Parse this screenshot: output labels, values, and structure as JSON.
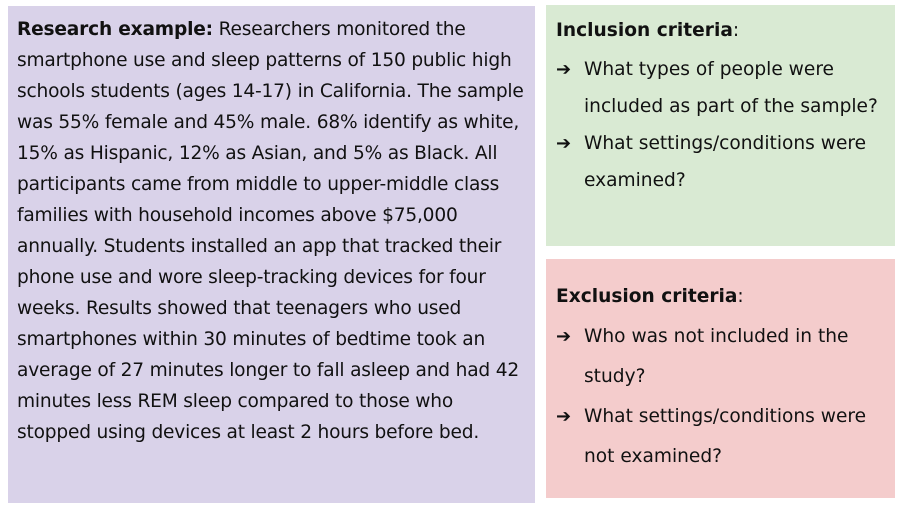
{
  "research": {
    "lead": "Research example:",
    "body": " Researchers monitored the smartphone use and sleep patterns of 150 public high schools students (ages 14-17) in California. The sample was 55% female and 45% male. 68% identify as white, 15% as Hispanic, 12% as Asian, and 5% as Black. All participants came from middle to upper-middle class families with household incomes above $75,000 annually. Students installed an app that tracked their phone use and wore sleep-tracking devices for four weeks. Results showed that teenagers who used smartphones within 30 minutes of bedtime took an average of 27 minutes longer to fall asleep and had 42 minutes less REM sleep compared to those who stopped using devices at least 2 hours before bed."
  },
  "inclusion": {
    "title": "Inclusion criteria",
    "colon": ":",
    "items": [
      "What types of people were included as part of the sample?",
      "What settings/conditions were examined?"
    ]
  },
  "exclusion": {
    "title": "Exclusion criteria",
    "colon": ":",
    "items": [
      "Who was not included in the study?",
      "What settings/conditions were not examined?"
    ]
  },
  "icons": {
    "bullet": "arrow-right-icon"
  },
  "colors": {
    "research_bg": "#d9d2e9",
    "inclusion_bg": "#d9ead3",
    "exclusion_bg": "#f4cccc"
  }
}
